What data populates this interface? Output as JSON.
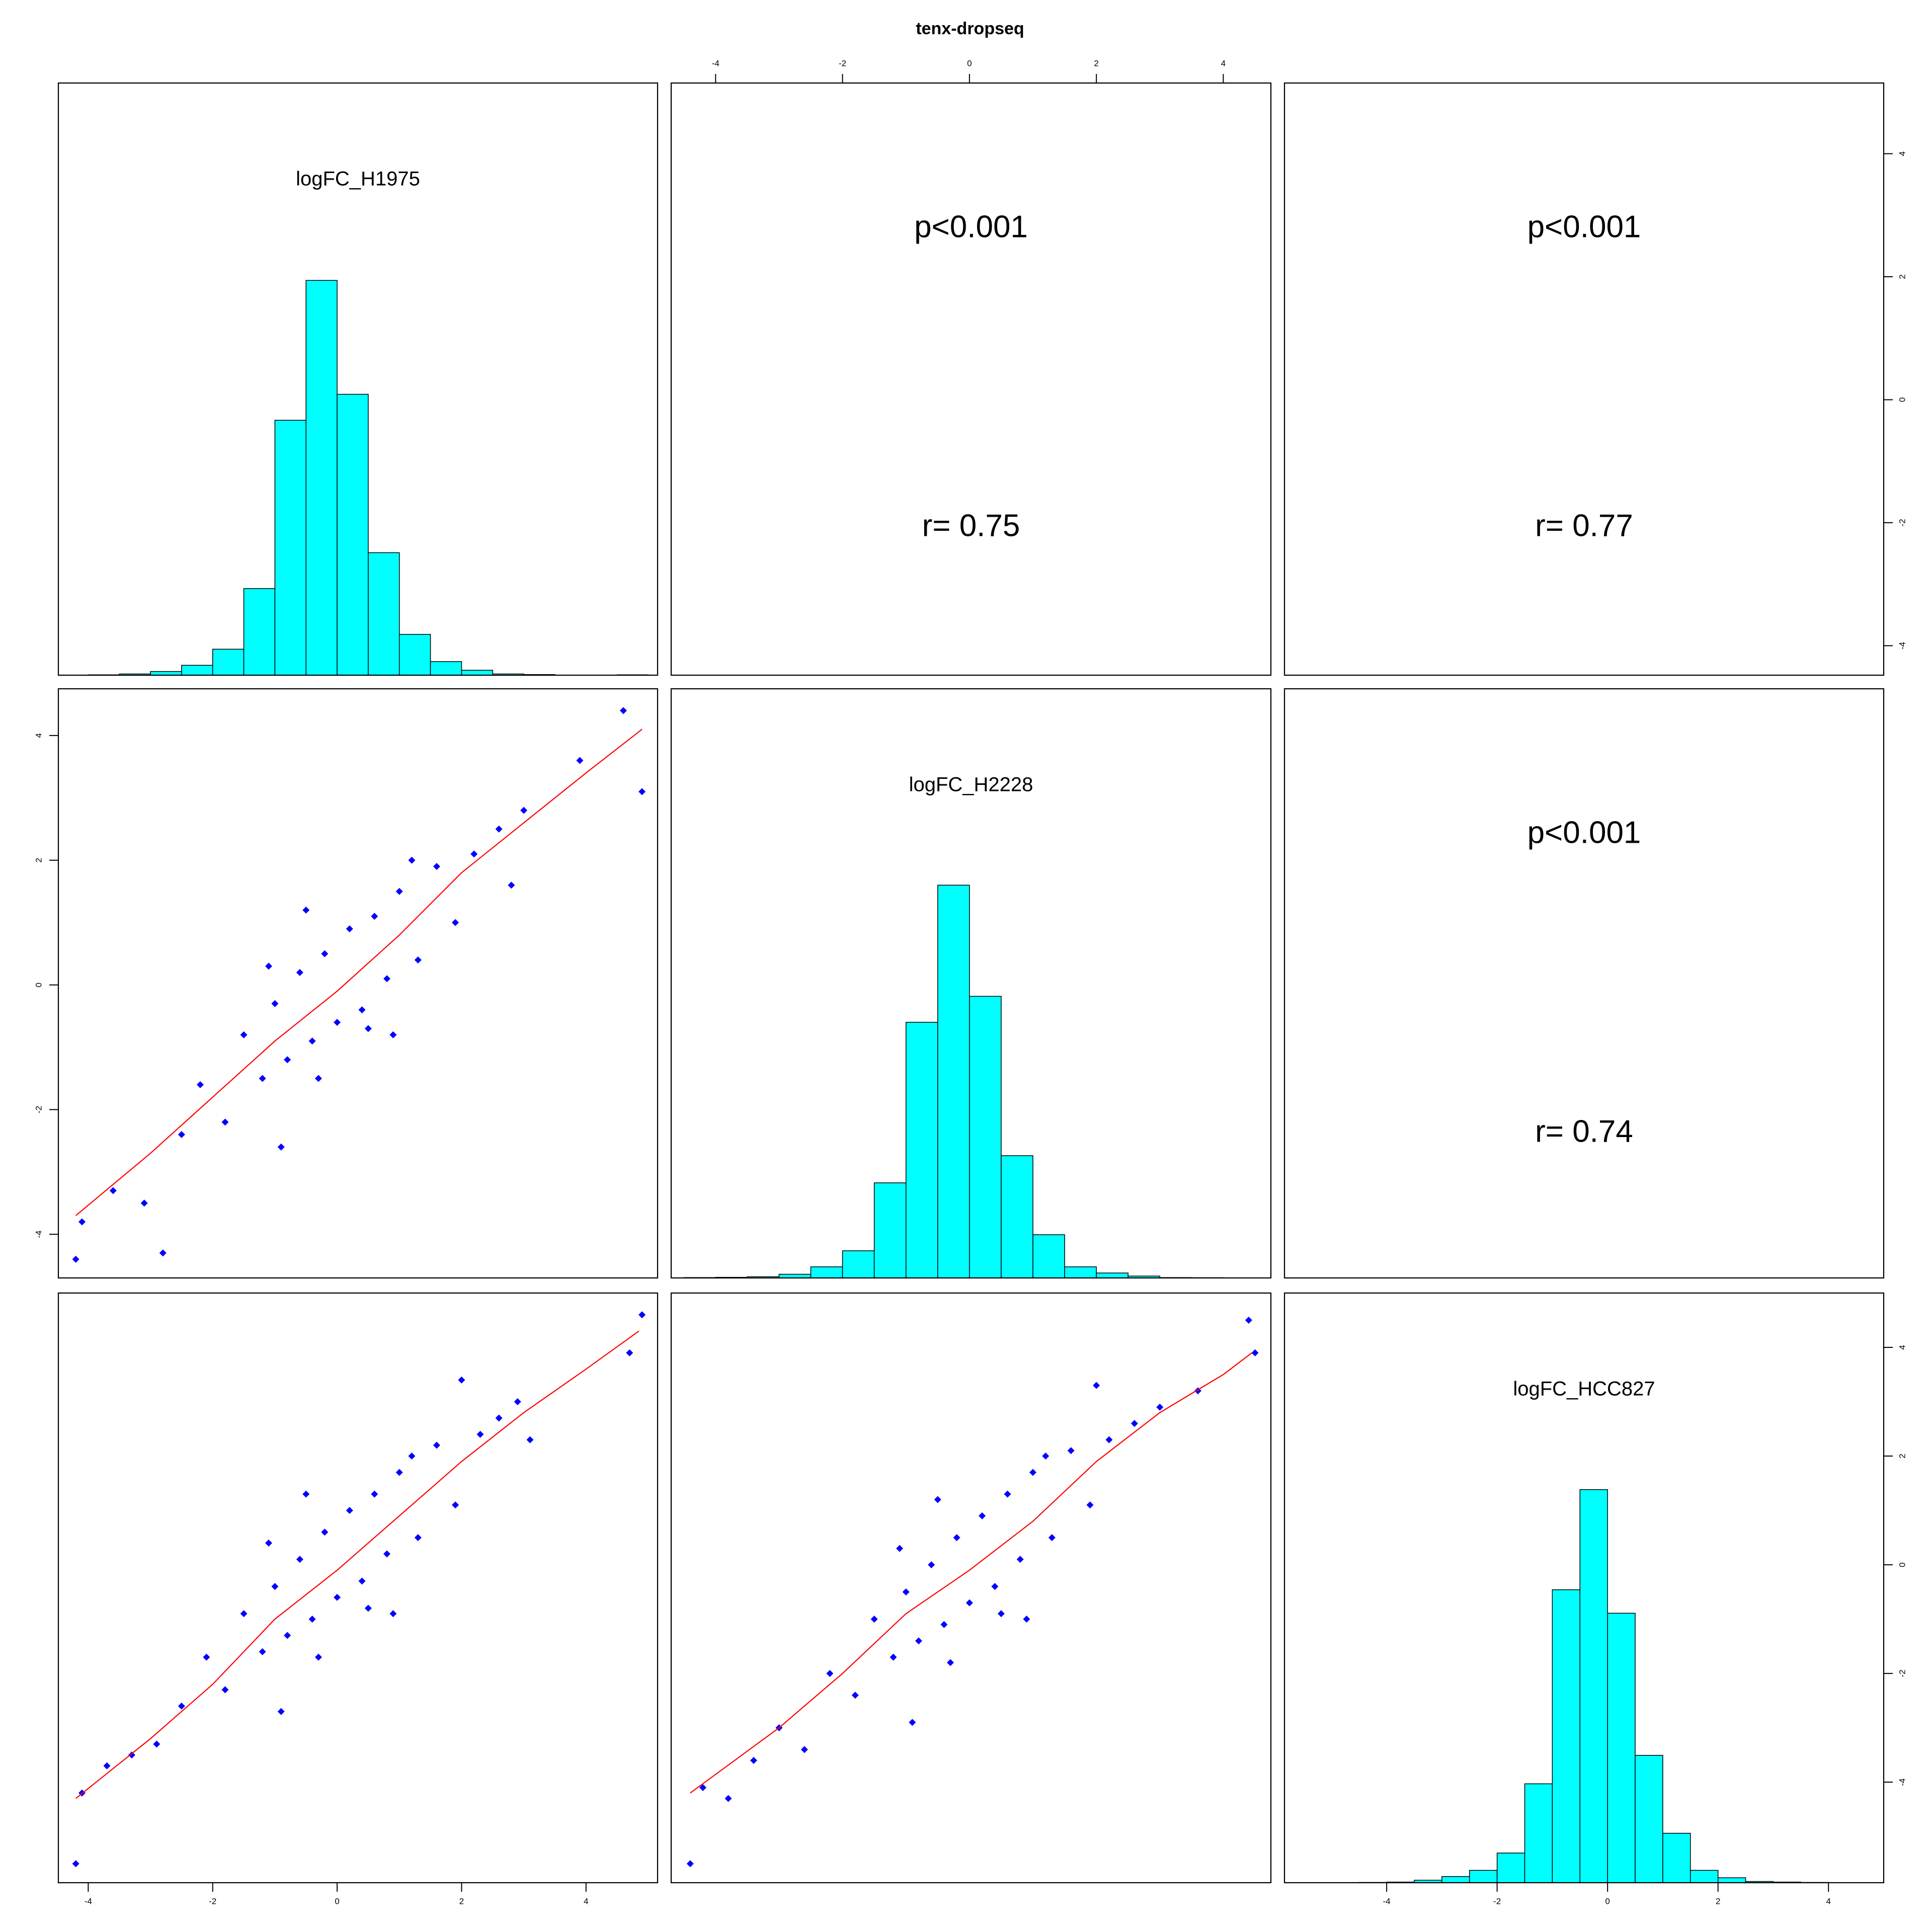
{
  "chart_data": {
    "type": "pairs",
    "title": "tenx-dropseq",
    "hist_color": "#00ffff",
    "point_color": "#0000ff",
    "fit_color": "#ff0000",
    "variables": [
      {
        "label": "logFC_H1975",
        "lim": [
          -4.48,
          5.15
        ],
        "ticks": [
          -4,
          -2,
          0,
          2,
          4
        ]
      },
      {
        "label": "logFC_H2228",
        "lim": [
          -4.7,
          4.75
        ],
        "ticks": [
          -4,
          -2,
          0,
          2,
          4
        ]
      },
      {
        "label": "logFC_HCC827",
        "lim": [
          -5.85,
          5.0
        ],
        "ticks": [
          -4,
          -2,
          0,
          2,
          4
        ]
      }
    ],
    "histograms": [
      {
        "bins": [
          -4,
          -3.5,
          -3,
          -2.5,
          -2,
          -1.5,
          -1,
          -0.5,
          0,
          0.5,
          1,
          1.5,
          2,
          2.5,
          3,
          3.5,
          4,
          4.5,
          5
        ],
        "counts": [
          0.3,
          1,
          3,
          8,
          21,
          70,
          206,
          319,
          227,
          99,
          33,
          11,
          4,
          1,
          0.5,
          0,
          0,
          0.3
        ]
      },
      {
        "bins": [
          -4.5,
          -4,
          -3.5,
          -3,
          -2.5,
          -2,
          -1.5,
          -1,
          -0.5,
          0,
          0.5,
          1,
          1.5,
          2,
          2.5,
          3,
          3.5,
          4,
          4.5
        ],
        "counts": [
          0.3,
          0.5,
          1,
          3,
          9,
          22,
          77,
          207,
          318,
          228,
          99,
          35,
          9,
          4,
          1.5,
          0.3,
          0.2,
          0.1
        ]
      },
      {
        "bins": [
          -4.5,
          -4,
          -3.5,
          -3,
          -2.5,
          -2,
          -1.5,
          -1,
          -0.5,
          0,
          0.5,
          1,
          1.5,
          2,
          2.5,
          3,
          3.5,
          4,
          4.5
        ],
        "counts": [
          0.2,
          0.5,
          2,
          5,
          10,
          24,
          80,
          237,
          318,
          218,
          103,
          40,
          10,
          4,
          1,
          0.5,
          0.2,
          0.1
        ]
      }
    ],
    "correlations": [
      {
        "p": "p<0.001",
        "r": 0.75,
        "r_label": "r= 0.75"
      },
      {
        "p": "p<0.001",
        "r": 0.77,
        "r_label": "r= 0.77"
      },
      {
        "p": "p<0.001",
        "r": 0.74,
        "r_label": "r= 0.74"
      }
    ],
    "scatter": [
      {
        "x": [
          4.6,
          3.9,
          4.9,
          -4.2,
          -4.1,
          -2.8,
          -3.1,
          -3.6,
          -2.5,
          -2.2,
          -1.8,
          -1.5,
          -1.2,
          -1.0,
          -0.8,
          -0.6,
          -0.4,
          -0.2,
          0,
          0.2,
          0.4,
          0.6,
          0.8,
          1.0,
          1.3,
          1.6,
          1.9,
          2.2,
          2.6,
          3.0,
          -0.3,
          0.5,
          -1.1,
          1.2,
          -0.9,
          2.8,
          -0.5,
          0.9
        ],
        "y": [
          4.4,
          3.6,
          3.1,
          -4.4,
          -3.8,
          -4.3,
          -3.5,
          -3.3,
          -2.4,
          -1.6,
          -2.2,
          -0.8,
          -1.5,
          -0.3,
          -1.2,
          0.2,
          -0.9,
          0.5,
          -0.6,
          0.9,
          -0.4,
          1.1,
          0.1,
          1.5,
          0.4,
          1.9,
          1.0,
          2.1,
          2.5,
          2.8,
          -1.5,
          -0.7,
          0.3,
          2.0,
          -2.6,
          1.6,
          1.2,
          -0.8
        ],
        "fit_x": [
          -4.2,
          -3,
          -2,
          -1,
          0,
          1,
          2,
          3,
          4,
          4.9
        ],
        "fit_y": [
          -3.7,
          -2.7,
          -1.8,
          -0.9,
          -0.1,
          0.8,
          1.8,
          2.6,
          3.4,
          4.1
        ]
      },
      {
        "x": [
          4.9,
          4.7,
          -4.2,
          -4.1,
          -3.7,
          -3.3,
          -2.9,
          -2.5,
          -2.1,
          -1.8,
          -1.5,
          -1.2,
          -1.0,
          -0.8,
          -0.6,
          -0.4,
          -0.2,
          0,
          0.2,
          0.4,
          0.6,
          0.8,
          1.0,
          1.3,
          1.6,
          1.9,
          2.3,
          2.6,
          3.1,
          2.9,
          -0.3,
          0.5,
          -1.1,
          1.2,
          -0.9,
          2.0,
          -0.5,
          0.9
        ],
        "y": [
          4.6,
          3.9,
          -5.5,
          -4.2,
          -3.7,
          -3.5,
          -3.3,
          -2.6,
          -1.7,
          -2.3,
          -0.9,
          -1.6,
          -0.4,
          -1.3,
          0.1,
          -1.0,
          0.6,
          -0.6,
          1.0,
          -0.3,
          1.3,
          0.2,
          1.7,
          0.5,
          2.2,
          1.1,
          2.4,
          2.7,
          2.3,
          3.0,
          -1.7,
          -0.8,
          0.4,
          2.0,
          -2.7,
          3.4,
          1.3,
          -0.9
        ],
        "fit_x": [
          -4.2,
          -3,
          -2,
          -1,
          0,
          1,
          2,
          3,
          4,
          4.85
        ],
        "fit_y": [
          -4.3,
          -3.2,
          -2.2,
          -1.0,
          -0.1,
          0.9,
          1.9,
          2.8,
          3.6,
          4.3
        ]
      },
      {
        "x": [
          4.4,
          3.6,
          4.5,
          -4.4,
          -4.2,
          -3.8,
          -3.4,
          -3.0,
          -2.6,
          -2.2,
          -1.8,
          -1.5,
          -1.2,
          -1.0,
          -0.8,
          -0.6,
          -0.4,
          -0.2,
          0,
          0.2,
          0.4,
          0.6,
          0.8,
          1.0,
          1.3,
          1.6,
          1.9,
          2.2,
          2.6,
          3.0,
          -0.3,
          0.5,
          -1.1,
          1.2,
          -0.9,
          2.0,
          -0.5,
          0.9
        ],
        "y": [
          4.5,
          3.2,
          3.9,
          -5.5,
          -4.1,
          -4.3,
          -3.6,
          -3.0,
          -3.4,
          -2.0,
          -2.4,
          -1.0,
          -1.7,
          -0.5,
          -1.4,
          0.0,
          -1.1,
          0.5,
          -0.7,
          0.9,
          -0.4,
          1.3,
          0.1,
          1.7,
          0.5,
          2.1,
          1.1,
          2.3,
          2.6,
          2.9,
          -1.8,
          -0.9,
          0.3,
          2.0,
          -2.9,
          3.3,
          1.2,
          -1.0
        ],
        "fit_x": [
          -4.4,
          -3,
          -2,
          -1,
          0,
          1,
          2,
          3,
          4,
          4.45
        ],
        "fit_y": [
          -4.2,
          -3.0,
          -2.0,
          -0.9,
          -0.1,
          0.8,
          1.9,
          2.8,
          3.5,
          3.9
        ]
      }
    ]
  }
}
